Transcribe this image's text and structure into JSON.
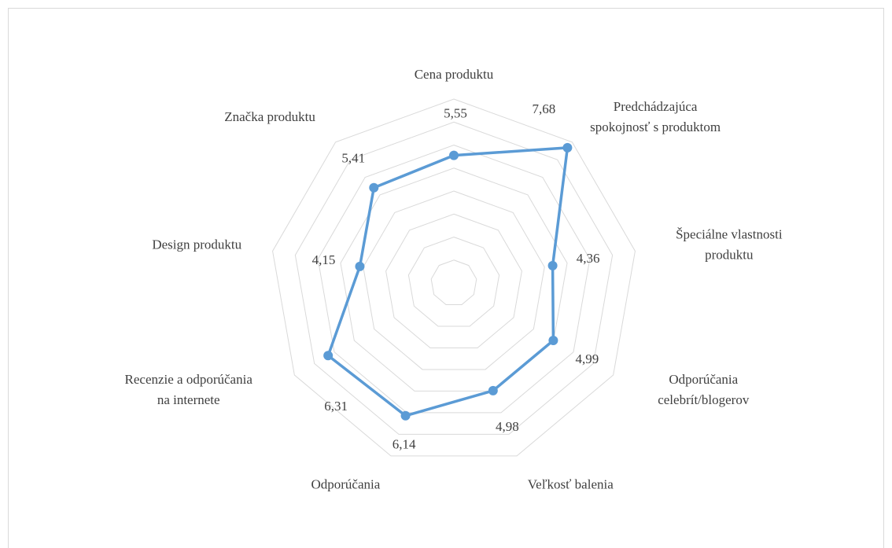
{
  "chart_data": {
    "type": "radar",
    "categories": [
      [
        "Cena produktu"
      ],
      [
        "Predchádzajúca",
        "spokojnosť s produktom"
      ],
      [
        "Špeciálne vlastnosti",
        "produktu"
      ],
      [
        "Odporúčania",
        "celebrít/blogerov"
      ],
      [
        "Veľkosť balenia"
      ],
      [
        "Odporúčania"
      ],
      [
        "Recenzie a odporúčania",
        "na internete"
      ],
      [
        "Design produktu"
      ],
      [
        "Značka produktu"
      ]
    ],
    "values": [
      5.55,
      7.68,
      4.36,
      4.99,
      4.98,
      6.14,
      6.31,
      4.15,
      5.41
    ],
    "value_labels": [
      "5,55",
      "7,68",
      "4,36",
      "4,99",
      "4,98",
      "6,14",
      "6,31",
      "4,15",
      "5,41"
    ],
    "color": "#5b9bd5",
    "ylim": [
      0,
      8
    ],
    "yticks": [
      0,
      1,
      2,
      3,
      4,
      5,
      6,
      7,
      8
    ],
    "grid": true
  }
}
